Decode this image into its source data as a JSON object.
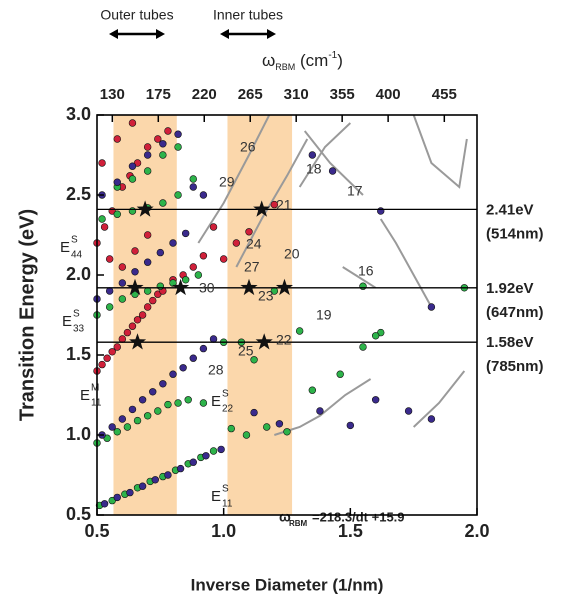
{
  "chart_data": {
    "type": "scatter",
    "x_label": "Inverse Diameter (1/nm)",
    "y_label": "Transition Energy (eV)",
    "x2_label": {
      "main": "ω",
      "sub": "RBM",
      "rest": " (cm",
      "sup": "-1",
      "end": ")"
    },
    "xlim": [
      0.5,
      2.0
    ],
    "ylim": [
      0.5,
      3.0
    ],
    "x2lim": [
      115,
      487
    ],
    "xticks": [
      0.5,
      {
        "value": 1,
        "label": "1.0"
      },
      1.5,
      {
        "value": 2,
        "label": "2.0"
      }
    ],
    "yticks": [
      0.5,
      {
        "value": 1,
        "label": "1.0"
      },
      1.5,
      {
        "value": 2,
        "label": "2.0"
      },
      2.5,
      {
        "value": 3,
        "label": "3.0"
      }
    ],
    "x2ticks": [
      130,
      175,
      220,
      265,
      310,
      355,
      400,
      455
    ],
    "bands": [
      {
        "label": "Outer tubes",
        "xlim": [
          0.565,
          0.815
        ],
        "color": "#fbd7ab"
      },
      {
        "label": "Inner tubes",
        "xlim": [
          1.015,
          1.27
        ],
        "color": "#fbd7ab"
      }
    ],
    "lasers": [
      {
        "value": 2.41,
        "label": "2.41eV",
        "wavelength": "(514nm)"
      },
      {
        "value": 1.92,
        "label": "1.92eV",
        "wavelength": "(647nm)"
      },
      {
        "value": 1.58,
        "label": "1.58eV",
        "wavelength": "(785nm)"
      }
    ],
    "series": [
      {
        "color": "#9a9a9a",
        "line": true,
        "x": [
          0.9,
          1.0,
          1.1,
          1.18,
          null,
          1.05,
          1.15,
          1.25,
          1.33,
          null,
          1.3,
          1.4,
          1.5,
          null,
          1.47,
          1.52,
          1.6,
          null,
          1.32,
          1.42,
          1.55,
          null,
          1.75,
          1.82,
          1.93,
          1.96,
          null,
          1.62,
          1.68,
          1.82,
          null,
          1.2,
          1.3,
          1.38,
          1.48,
          1.58,
          null,
          1.75,
          1.85,
          1.95
        ],
        "values": [
          2.2,
          2.45,
          2.75,
          3.0,
          null,
          2.05,
          2.35,
          2.62,
          2.85,
          null,
          2.55,
          2.8,
          2.95,
          null,
          2.05,
          2.0,
          1.92,
          null,
          2.9,
          2.7,
          2.5,
          null,
          3.0,
          2.7,
          2.55,
          2.85,
          null,
          2.35,
          2.2,
          1.8,
          null,
          1.0,
          1.05,
          1.12,
          1.25,
          1.35,
          null,
          1.05,
          1.2,
          1.4
        ]
      },
      {
        "color": "#2db34a",
        "x": [
          0.51,
          0.56,
          0.61,
          0.66,
          0.71,
          0.76,
          0.81,
          0.86,
          0.91,
          0.96,
          1.03,
          1.09,
          1.17,
          1.25,
          1.35,
          1.46,
          1.55,
          1.62
        ],
        "values": [
          0.56,
          0.59,
          0.63,
          0.67,
          0.71,
          0.74,
          0.78,
          0.82,
          0.86,
          0.9,
          1.04,
          1.0,
          1.05,
          1.02,
          1.28,
          1.38,
          1.55,
          1.64
        ]
      },
      {
        "color": "#3a2a8c",
        "x": [
          0.53,
          0.58,
          0.63,
          0.68,
          0.73,
          0.78,
          0.83,
          0.88,
          0.93,
          0.99,
          1.12,
          1.22,
          1.38,
          1.5,
          1.6,
          1.73,
          1.82
        ],
        "values": [
          0.57,
          0.61,
          0.64,
          0.68,
          0.72,
          0.75,
          0.79,
          0.83,
          0.87,
          0.91,
          1.14,
          1.07,
          1.15,
          1.06,
          1.22,
          1.15,
          1.1
        ]
      },
      {
        "color": "#2db34a",
        "x": [
          0.5,
          0.54,
          0.58,
          0.62,
          0.66,
          0.7,
          0.74,
          0.78,
          0.82,
          0.86,
          0.92,
          1.0,
          1.07,
          1.12
        ],
        "values": [
          0.95,
          0.98,
          1.02,
          1.05,
          1.09,
          1.12,
          1.15,
          1.19,
          1.2,
          1.22,
          1.2,
          1.58,
          1.58,
          1.47
        ]
      },
      {
        "color": "#3a2a8c",
        "x": [
          0.52,
          0.56,
          0.6,
          0.64,
          0.68,
          0.72,
          0.76,
          0.8,
          0.84,
          0.88,
          0.92,
          0.96
        ],
        "values": [
          1.0,
          1.05,
          1.1,
          1.16,
          1.22,
          1.27,
          1.32,
          1.38,
          1.42,
          1.48,
          1.54,
          1.6
        ]
      },
      {
        "color": "#d0203a",
        "x": [
          0.5,
          0.52,
          0.54,
          0.56,
          0.58,
          0.6,
          0.62,
          0.64,
          0.66,
          0.68,
          0.7,
          0.72,
          0.74,
          0.76,
          0.8,
          0.84,
          0.88,
          0.92
        ],
        "values": [
          1.4,
          1.44,
          1.48,
          1.52,
          1.55,
          1.6,
          1.64,
          1.68,
          1.72,
          1.75,
          1.8,
          1.84,
          1.88,
          1.9,
          1.97,
          2.0,
          2.05,
          2.12
        ]
      },
      {
        "color": "#d0203a",
        "x": [
          0.5,
          0.53,
          0.56,
          0.6,
          0.63,
          0.66,
          0.7,
          0.74,
          0.78,
          0.55,
          0.6,
          0.65,
          0.7,
          0.52,
          0.58,
          0.64,
          0.96,
          1.0,
          1.05,
          1.1,
          1.2
        ],
        "values": [
          2.2,
          2.3,
          2.4,
          2.55,
          2.62,
          2.7,
          2.8,
          2.85,
          2.9,
          2.1,
          2.05,
          2.15,
          2.25,
          2.7,
          2.85,
          2.95,
          2.3,
          2.1,
          2.2,
          2.27,
          2.44
        ]
      },
      {
        "color": "#2db34a",
        "x": [
          0.5,
          0.55,
          0.6,
          0.65,
          0.7,
          0.75,
          0.8,
          0.85,
          0.9,
          0.52,
          0.58,
          0.64,
          0.7,
          0.76,
          0.82,
          0.88,
          0.58,
          0.64,
          0.7,
          0.76,
          0.82,
          1.2,
          1.3,
          1.55,
          1.6,
          1.95
        ],
        "values": [
          1.75,
          1.8,
          1.85,
          1.88,
          1.9,
          1.93,
          1.95,
          1.97,
          2.0,
          2.35,
          2.38,
          2.4,
          2.42,
          2.45,
          2.5,
          2.6,
          2.55,
          2.6,
          2.65,
          2.75,
          2.8,
          1.9,
          1.65,
          1.93,
          1.62,
          1.92
        ]
      },
      {
        "color": "#3a2a8c",
        "x": [
          0.5,
          0.55,
          0.6,
          0.65,
          0.7,
          0.75,
          0.8,
          0.85,
          0.52,
          0.58,
          0.64,
          0.7,
          0.76,
          0.82,
          0.88,
          0.92,
          1.35,
          1.43,
          1.62,
          1.82
        ],
        "values": [
          1.85,
          1.9,
          1.95,
          2.02,
          2.08,
          2.14,
          2.2,
          2.26,
          2.5,
          2.58,
          2.68,
          2.75,
          2.82,
          2.88,
          2.55,
          2.5,
          2.75,
          2.65,
          2.4,
          1.8
        ]
      }
    ],
    "stars": {
      "x": [
        0.69,
        1.15,
        0.65,
        0.83,
        1.1,
        1.24,
        0.66,
        1.16
      ],
      "values": [
        2.41,
        2.41,
        1.92,
        1.92,
        1.92,
        1.92,
        1.58,
        1.58
      ]
    },
    "annotations": [
      "26",
      "29",
      "18",
      "21",
      "17",
      "24",
      "20",
      "27",
      "16",
      "30",
      "23",
      "19",
      "22",
      "25",
      "28"
    ],
    "transition_labels": [
      {
        "main": "E",
        "sup": "S",
        "sub": "44"
      },
      {
        "main": "E",
        "sup": "S",
        "sub": "33"
      },
      {
        "main": "E",
        "sup": "M",
        "sub": "11"
      },
      {
        "main": "E",
        "sup": "S",
        "sub": "22"
      },
      {
        "main": "E",
        "sup": "S",
        "sub": "11"
      }
    ],
    "formula": {
      "main": "ω",
      "sub": "RBM",
      "rest": "=218.3/dt +15.9"
    }
  }
}
